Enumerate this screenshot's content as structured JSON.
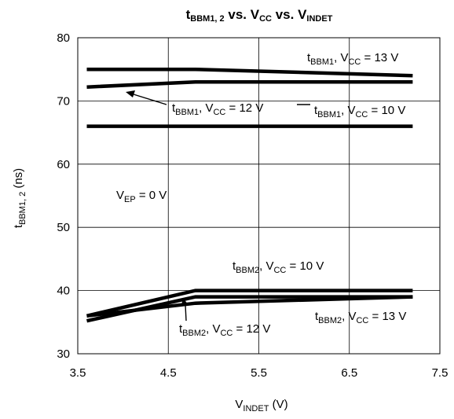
{
  "chart_data": {
    "type": "line",
    "title": "tBBM1, 2 vs. VCC vs. VINDET",
    "xlabel": "VINDET (V)",
    "ylabel": "tBBM1, 2 (ns)",
    "xlim": [
      3.5,
      7.5
    ],
    "ylim": [
      30,
      80
    ],
    "x_ticks": [
      "3.5",
      "4.5",
      "5.5",
      "6.5",
      "7.5"
    ],
    "y_ticks": [
      "30",
      "40",
      "50",
      "60",
      "70",
      "80"
    ],
    "grid": true,
    "series": [
      {
        "name": "tBBM1, VCC = 13 V",
        "x": [
          3.6,
          4.8,
          7.2
        ],
        "y": [
          75,
          75,
          74
        ]
      },
      {
        "name": "tBBM1, VCC = 12 V",
        "x": [
          3.6,
          4.8,
          7.2
        ],
        "y": [
          72.2,
          73,
          73
        ]
      },
      {
        "name": "tBBM1, VCC = 10 V",
        "x": [
          3.6,
          4.8,
          7.2
        ],
        "y": [
          66,
          66,
          66
        ]
      },
      {
        "name": "tBBM2, VCC = 10 V",
        "x": [
          3.6,
          4.8,
          7.2
        ],
        "y": [
          36,
          40,
          40
        ]
      },
      {
        "name": "tBBM2, VCC = 12 V",
        "x": [
          3.6,
          4.8,
          7.2
        ],
        "y": [
          35.2,
          39,
          39
        ]
      },
      {
        "name": "tBBM2, VCC = 13 V",
        "x": [
          3.6,
          4.8,
          7.2
        ],
        "y": [
          36,
          38,
          39
        ]
      }
    ],
    "annotations": [
      "VEP = 0 V"
    ]
  }
}
